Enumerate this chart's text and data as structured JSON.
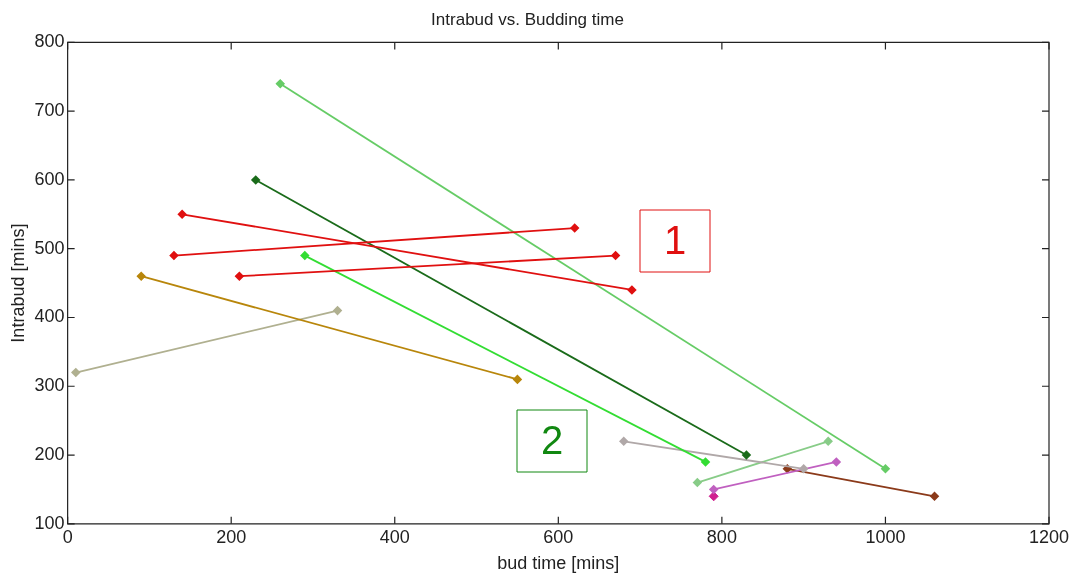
{
  "chart_data": {
    "type": "line",
    "title": "Intrabud vs. Budding time",
    "xlabel": "bud time [mins]",
    "ylabel": "Intrabud [mins]",
    "xlim": [
      0,
      1200
    ],
    "xticks": [
      0,
      200,
      400,
      600,
      800,
      1000,
      1200
    ],
    "ylim": [
      100,
      800
    ],
    "yticks": [
      100,
      200,
      300,
      400,
      500,
      600,
      700,
      800
    ],
    "grid": false,
    "legend": false,
    "marker": "diamond",
    "line_style": "solid",
    "annotations": [
      "1",
      "2"
    ],
    "series": [
      {
        "color": "#e01010",
        "x": [
          140,
          690
        ],
        "values": [
          550,
          440
        ]
      },
      {
        "color": "#e01010",
        "x": [
          130,
          620
        ],
        "values": [
          490,
          530
        ]
      },
      {
        "color": "#e01010",
        "x": [
          210,
          670
        ],
        "values": [
          460,
          490
        ]
      },
      {
        "color": "#66cc66",
        "x": [
          260,
          1000
        ],
        "values": [
          740,
          180
        ]
      },
      {
        "color": "#1a6b1a",
        "x": [
          230,
          830
        ],
        "values": [
          600,
          200
        ]
      },
      {
        "color": "#33dd33",
        "x": [
          290,
          780
        ],
        "values": [
          490,
          190
        ]
      },
      {
        "color": "#b8860b",
        "x": [
          90,
          550
        ],
        "values": [
          460,
          310
        ]
      },
      {
        "color": "#b0b090",
        "x": [
          10,
          330
        ],
        "values": [
          320,
          410
        ]
      },
      {
        "color": "#b0a8a8",
        "x": [
          680,
          900
        ],
        "values": [
          220,
          180
        ]
      },
      {
        "color": "#88cc88",
        "x": [
          770,
          930
        ],
        "values": [
          160,
          220
        ]
      },
      {
        "color": "#c060c0",
        "x": [
          790,
          940
        ],
        "values": [
          150,
          190
        ]
      },
      {
        "type": "scatter",
        "color": "#d02090",
        "x": [
          790
        ],
        "values": [
          140
        ]
      },
      {
        "color": "#8b3a1a",
        "x": [
          880,
          1060
        ],
        "values": [
          180,
          140
        ]
      }
    ]
  }
}
